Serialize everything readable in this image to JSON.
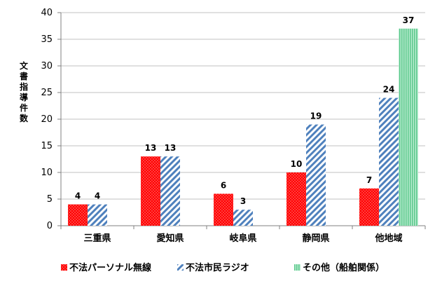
{
  "chart_data": {
    "type": "bar",
    "ylabel": "文書指導件数",
    "ylim": [
      0,
      40
    ],
    "yticks": [
      0,
      5,
      10,
      15,
      20,
      25,
      30,
      35,
      40
    ],
    "categories": [
      "三重県",
      "愛知県",
      "岐阜県",
      "静岡県",
      "他地域"
    ],
    "series": [
      {
        "name": "不法パーソナル無線",
        "values": [
          4,
          13,
          6,
          10,
          7
        ],
        "color": "#ff0000",
        "pattern": "dots"
      },
      {
        "name": "不法市民ラジオ",
        "values": [
          4,
          13,
          3,
          19,
          24
        ],
        "color": "#4f81bd",
        "pattern": "diagonal-stripes"
      },
      {
        "name": "その他（船舶関係）",
        "values": [
          null,
          null,
          null,
          null,
          37
        ],
        "color": "#7fd6a4",
        "pattern": "vertical-stripes"
      }
    ],
    "legend_position": "bottom",
    "grid": true
  }
}
